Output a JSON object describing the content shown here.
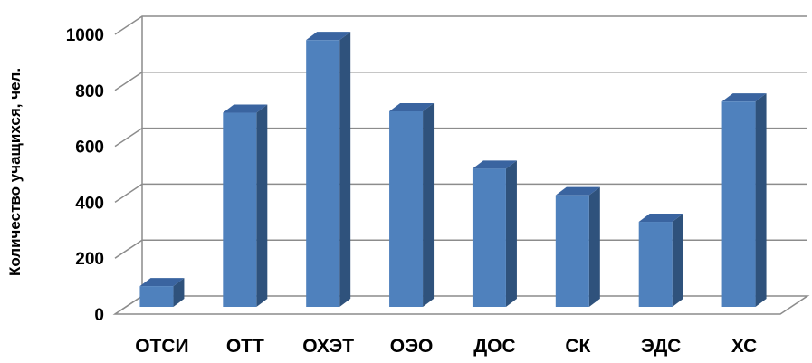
{
  "chart_data": {
    "type": "bar",
    "title": "",
    "xlabel": "",
    "ylabel": "Количество учащихся, чел.",
    "categories": [
      "ОТСИ",
      "ОТТ",
      "ОХЭТ",
      "ОЭО",
      "ДОС",
      "СК",
      "ЭДС",
      "ХС"
    ],
    "values": [
      100,
      720,
      980,
      725,
      520,
      425,
      330,
      760
    ],
    "ylim": [
      0,
      1000
    ],
    "yticks": [
      0,
      200,
      400,
      600,
      800,
      1000
    ],
    "grid": true,
    "legend": "none",
    "three_d": true
  },
  "colors": {
    "bar_front": "#4F81BD",
    "bar_side": "#2F527C",
    "bar_top": "#3A64A0",
    "grid": "#8C8C8C",
    "wall": "#FFFFFF"
  }
}
